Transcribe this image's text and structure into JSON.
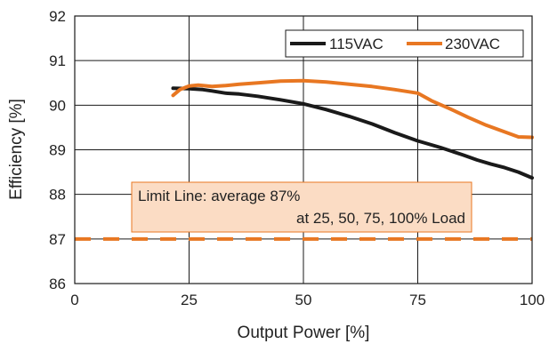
{
  "chart_data": {
    "type": "line",
    "xlabel": "Output Power [%]",
    "ylabel": "Efficiency [%]",
    "xlim": [
      0,
      100
    ],
    "ylim": [
      86,
      92
    ],
    "xticks": [
      0,
      25,
      50,
      75,
      100
    ],
    "yticks": [
      86,
      87,
      88,
      89,
      90,
      91,
      92
    ],
    "grid": true,
    "legend_position": "top-right",
    "series": [
      {
        "name": "115VAC",
        "color": "#1a1a1a",
        "x": [
          21.5,
          25,
          28,
          30,
          33,
          36,
          40,
          45,
          50,
          55,
          60,
          65,
          70,
          75,
          80,
          85,
          88,
          91,
          94,
          97,
          100
        ],
        "y": [
          90.38,
          90.37,
          90.35,
          90.32,
          90.27,
          90.25,
          90.2,
          90.12,
          90.03,
          89.9,
          89.75,
          89.58,
          89.38,
          89.2,
          89.05,
          88.88,
          88.77,
          88.68,
          88.6,
          88.5,
          88.37
        ]
      },
      {
        "name": "230VAC",
        "color": "#e87722",
        "x": [
          21.5,
          23,
          25,
          27,
          30,
          33,
          36,
          40,
          45,
          50,
          55,
          60,
          65,
          70,
          75,
          78,
          82,
          86,
          90,
          94,
          97,
          100
        ],
        "y": [
          90.22,
          90.35,
          90.43,
          90.45,
          90.42,
          90.44,
          90.47,
          90.5,
          90.54,
          90.55,
          90.52,
          90.47,
          90.42,
          90.35,
          90.27,
          90.1,
          89.92,
          89.73,
          89.55,
          89.4,
          89.29,
          89.28
        ]
      }
    ],
    "limit_line": {
      "y": 87,
      "color": "#e87722",
      "style": "dashed"
    },
    "annotation": {
      "line1": "Limit Line: average 87%",
      "line2": "at 25, 50, 75, 100% Load",
      "box_color": "#fbdcc4",
      "border_color": "#e87722"
    }
  }
}
